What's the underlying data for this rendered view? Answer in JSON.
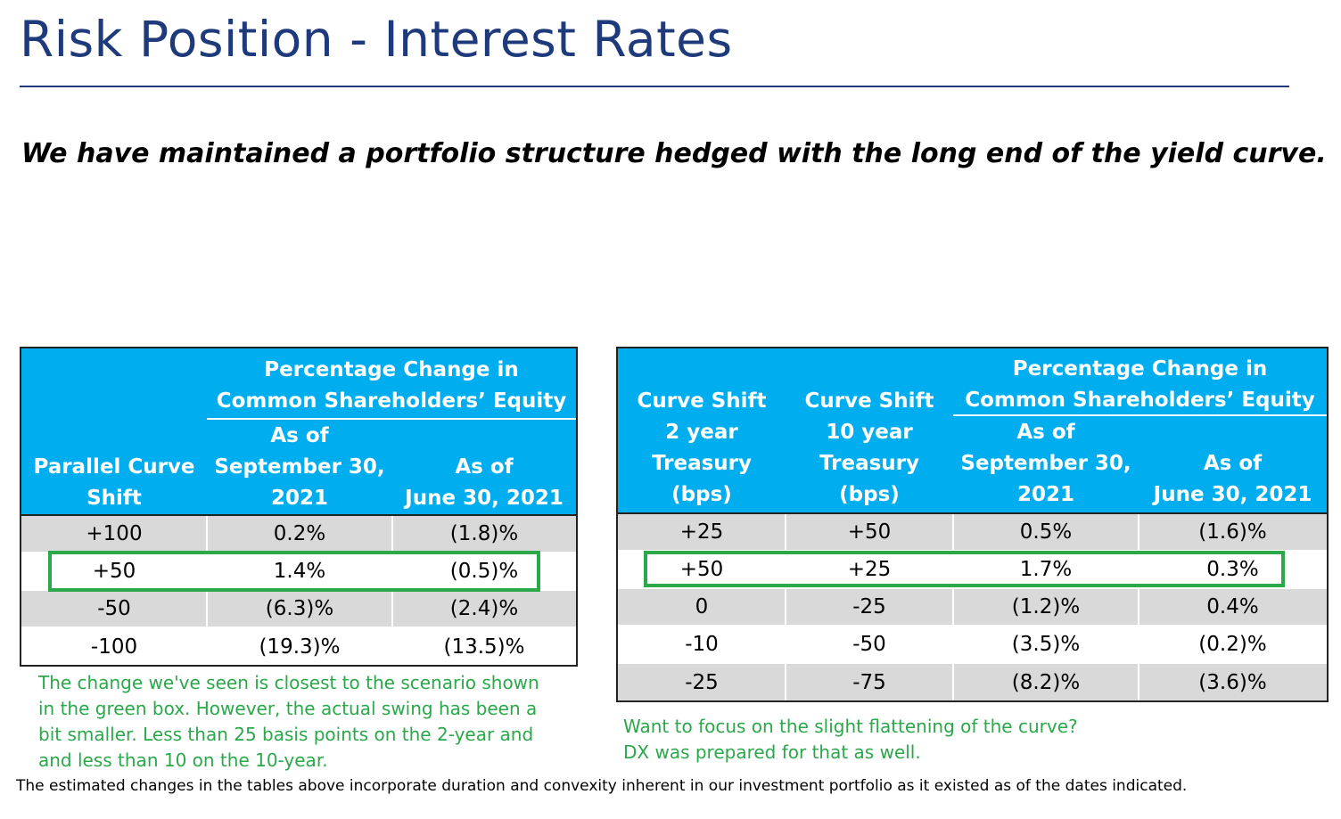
{
  "title": "Risk Position - Interest Rates",
  "subtitle": "We have maintained a portfolio structure hedged with the long end of the yield curve.",
  "table1": {
    "group_header": [
      "Percentage Change in",
      "Common Shareholders’ Equity"
    ],
    "col_headers": [
      [
        "Parallel Curve",
        "Shift"
      ],
      [
        "As of",
        "September 30,",
        "2021"
      ],
      [
        "As of",
        "June 30, 2021"
      ]
    ],
    "rows": [
      [
        "+100",
        "0.2%",
        "(1.8)%"
      ],
      [
        "+50",
        "1.4%",
        "(0.5)%"
      ],
      [
        "-50",
        "(6.3)%",
        "(2.4)%"
      ],
      [
        "-100",
        "(19.3)%",
        "(13.5)%"
      ]
    ],
    "highlight_row": 1
  },
  "table2": {
    "group_header": [
      "Percentage Change in",
      "Common Shareholders’ Equity"
    ],
    "col_headers": [
      [
        "Curve Shift",
        "2 year",
        "Treasury",
        "(bps)"
      ],
      [
        "Curve Shift",
        "10 year",
        "Treasury",
        "(bps)"
      ],
      [
        "As of",
        "September 30,",
        "2021"
      ],
      [
        "As of",
        "June 30, 2021"
      ]
    ],
    "rows": [
      [
        "+25",
        "+50",
        "0.5%",
        "(1.6)%"
      ],
      [
        "+50",
        "+25",
        "1.7%",
        "0.3%"
      ],
      [
        "0",
        "-25",
        "(1.2)%",
        "0.4%"
      ],
      [
        "-10",
        "-50",
        "(3.5)%",
        "(0.2)%"
      ],
      [
        "-25",
        "-75",
        "(8.2)%",
        "(3.6)%"
      ]
    ],
    "highlight_row": 1
  },
  "note1": [
    "The change we've seen is closest to the scenario shown",
    "in the green box. However, the actual swing has been a",
    "bit smaller. Less than 25 basis points on the 2-year and",
    "and less than 10 on the 10-year."
  ],
  "note2": [
    "Want to focus on the slight flattening of the curve?",
    "DX was prepared for that as well."
  ],
  "footer": "The estimated changes in the tables above incorporate duration and convexity inherent in our investment portfolio as it existed as of the dates indicated.",
  "colors": {
    "title": "#1f3a7a",
    "header_bg": "#00aeef",
    "row_gray": "#d9d9d9",
    "highlight": "#2aa84a",
    "note_text": "#2aa84a"
  }
}
